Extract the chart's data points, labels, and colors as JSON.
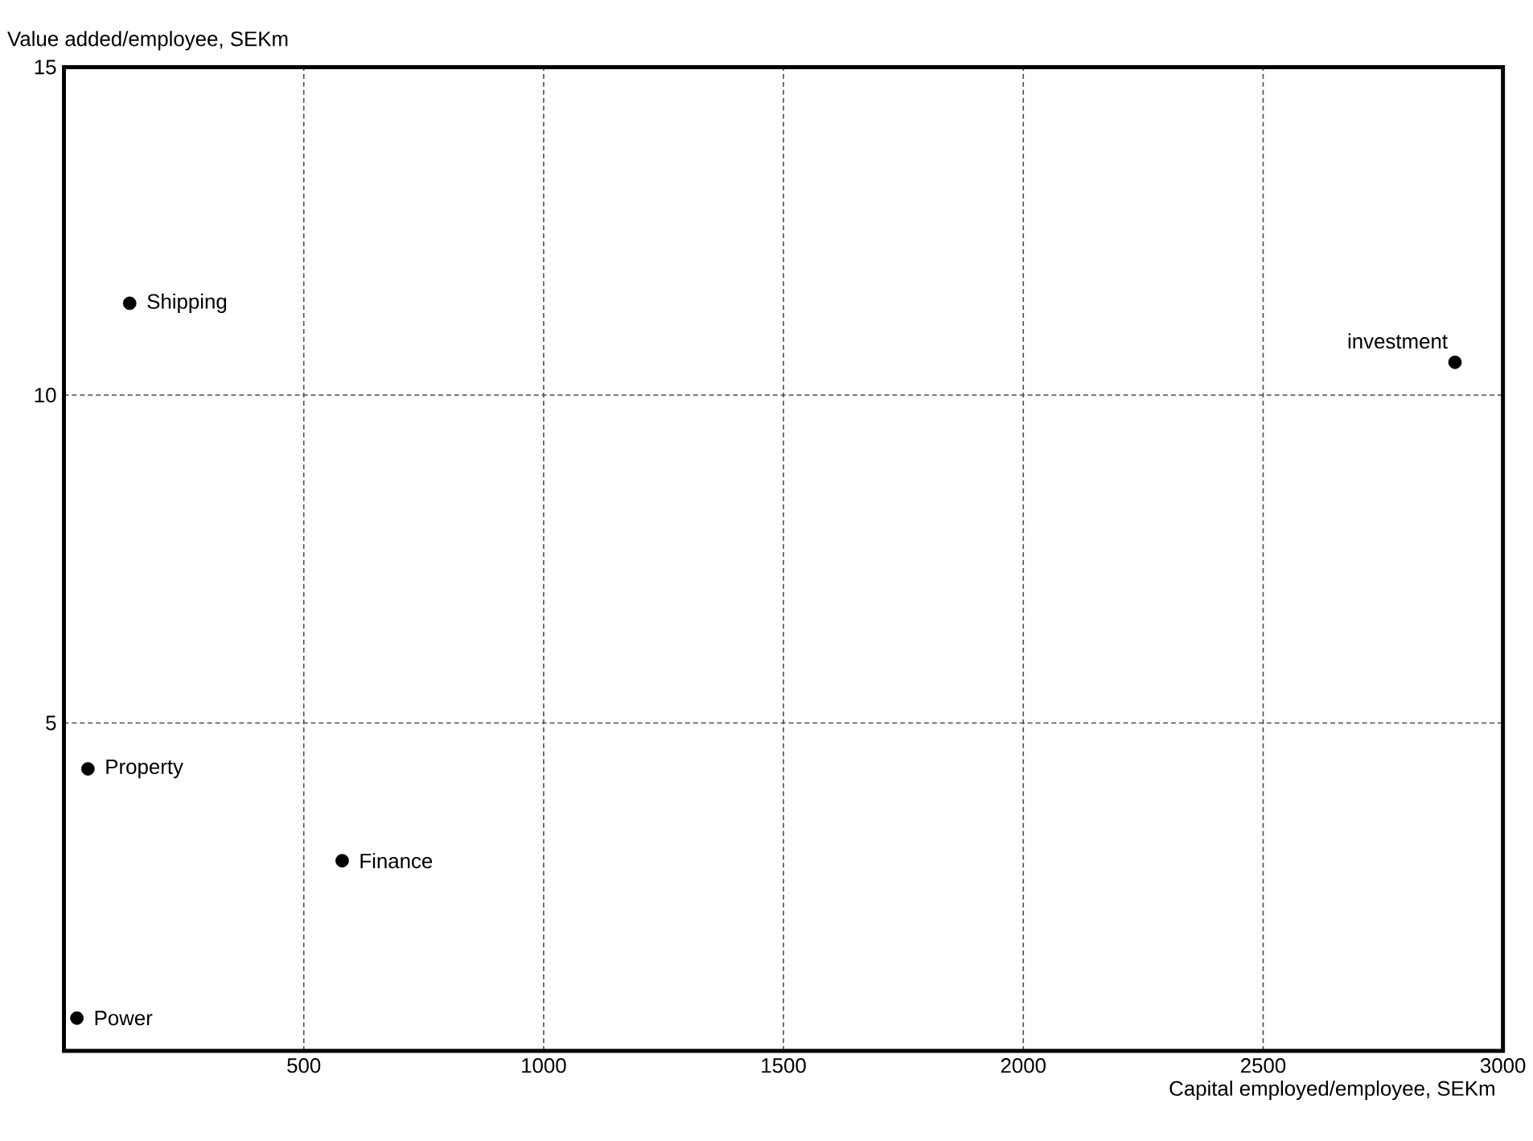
{
  "chart_data": {
    "type": "scatter",
    "xlabel": "Capital employed/employee, SEKm",
    "ylabel": "Value added/employee, SEKm",
    "xlim": [
      0,
      3000
    ],
    "xticks": [
      500,
      1000,
      1500,
      2000,
      2500,
      3000
    ],
    "ylim": [
      0,
      15
    ],
    "yticks": [
      5,
      10,
      15
    ],
    "grid": true,
    "marker": "circle",
    "series": [
      {
        "color": "#000000",
        "x": [
          27,
          137,
          50,
          580,
          2900
        ],
        "values": [
          0.5,
          11.4,
          4.3,
          2.9,
          10.5
        ]
      }
    ],
    "annotations": [
      {
        "text": "Power",
        "x": 27,
        "y": 0.5
      },
      {
        "text": "Shipping",
        "x": 137,
        "y": 11.4
      },
      {
        "text": "Property",
        "x": 50,
        "y": 4.3
      },
      {
        "text": "Finance",
        "x": 580,
        "y": 2.9
      },
      {
        "text": "investment",
        "x": 2900,
        "y": 10.5
      }
    ]
  }
}
